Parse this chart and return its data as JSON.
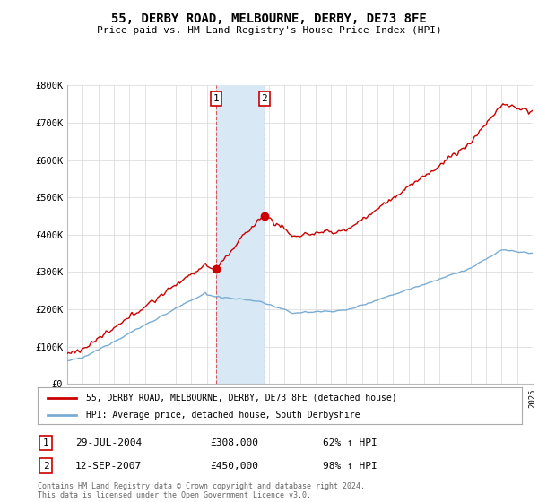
{
  "title": "55, DERBY ROAD, MELBOURNE, DERBY, DE73 8FE",
  "subtitle": "Price paid vs. HM Land Registry's House Price Index (HPI)",
  "ylim": [
    0,
    800000
  ],
  "yticks": [
    0,
    100000,
    200000,
    300000,
    400000,
    500000,
    600000,
    700000,
    800000
  ],
  "ytick_labels": [
    "£0",
    "£100K",
    "£200K",
    "£300K",
    "£400K",
    "£500K",
    "£600K",
    "£700K",
    "£800K"
  ],
  "sale1_date": 2004.58,
  "sale1_price": 308000,
  "sale1_label": "1",
  "sale1_info": "29-JUL-2004",
  "sale1_amount": "£308,000",
  "sale1_hpi": "62% ↑ HPI",
  "sale2_date": 2007.71,
  "sale2_price": 450000,
  "sale2_label": "2",
  "sale2_info": "12-SEP-2007",
  "sale2_amount": "£450,000",
  "sale2_hpi": "98% ↑ HPI",
  "red_line_color": "#cc0000",
  "blue_line_color": "#7aacd4",
  "shaded_color": "#d8e8f4",
  "vline_color": "#cc0000",
  "legend_label_red": "55, DERBY ROAD, MELBOURNE, DERBY, DE73 8FE (detached house)",
  "legend_label_blue": "HPI: Average price, detached house, South Derbyshire",
  "footer": "Contains HM Land Registry data © Crown copyright and database right 2024.\nThis data is licensed under the Open Government Licence v3.0.",
  "background_color": "#ffffff",
  "grid_color": "#d8d8d8"
}
